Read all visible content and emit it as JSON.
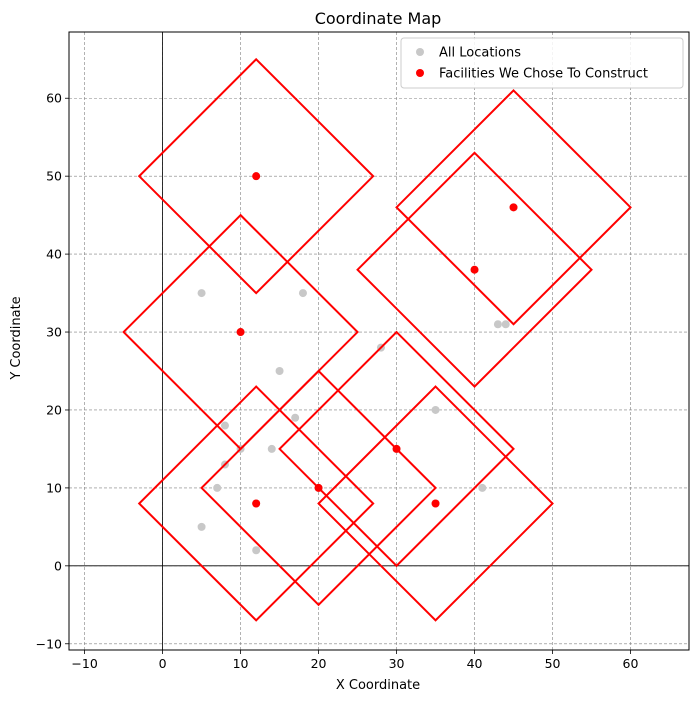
{
  "chart_data": {
    "type": "scatter",
    "title": "Coordinate Map",
    "xlabel": "X Coordinate",
    "ylabel": "Y Coordinate",
    "xlim": [
      -12,
      67.5
    ],
    "ylim": [
      -10.8,
      68.5
    ],
    "xticks": [
      -10,
      0,
      10,
      20,
      30,
      40,
      50,
      60
    ],
    "yticks": [
      -10,
      0,
      10,
      20,
      30,
      40,
      50,
      60
    ],
    "grid": true,
    "reference_lines": {
      "x": 0,
      "y": 0
    },
    "legend": {
      "placement": "top-right",
      "entries": [
        "All Locations",
        "Facilities We Chose To Construct"
      ]
    },
    "colors": {
      "all_locations": "#c8c8c8",
      "facilities": "#ff0000",
      "coverage": "#ff0000",
      "grid": "#808080"
    },
    "series": [
      {
        "name": "All Locations",
        "points": [
          [
            5,
            35
          ],
          [
            18,
            35
          ],
          [
            10,
            30
          ],
          [
            15,
            25
          ],
          [
            28,
            28
          ],
          [
            43,
            31
          ],
          [
            44,
            31
          ],
          [
            8,
            18
          ],
          [
            10,
            15
          ],
          [
            14,
            15
          ],
          [
            17,
            19
          ],
          [
            8,
            13
          ],
          [
            7,
            10
          ],
          [
            5,
            5
          ],
          [
            12,
            2
          ],
          [
            20,
            10
          ],
          [
            35,
            20
          ],
          [
            41,
            10
          ],
          [
            40,
            38
          ],
          [
            45,
            46
          ],
          [
            12,
            50
          ],
          [
            30,
            15
          ],
          [
            35,
            8
          ],
          [
            12,
            8
          ]
        ]
      },
      {
        "name": "Facilities We Chose To Construct",
        "points": [
          [
            12,
            50
          ],
          [
            45,
            46
          ],
          [
            40,
            38
          ],
          [
            10,
            30
          ],
          [
            30,
            15
          ],
          [
            20,
            10
          ],
          [
            12,
            8
          ],
          [
            35,
            8
          ]
        ]
      }
    ],
    "coverage_areas": {
      "shape": "diamond",
      "radius": 15,
      "centers": [
        [
          12,
          50
        ],
        [
          45,
          46
        ],
        [
          40,
          38
        ],
        [
          10,
          30
        ],
        [
          30,
          15
        ],
        [
          20,
          10
        ],
        [
          12,
          8
        ],
        [
          35,
          8
        ]
      ]
    }
  }
}
